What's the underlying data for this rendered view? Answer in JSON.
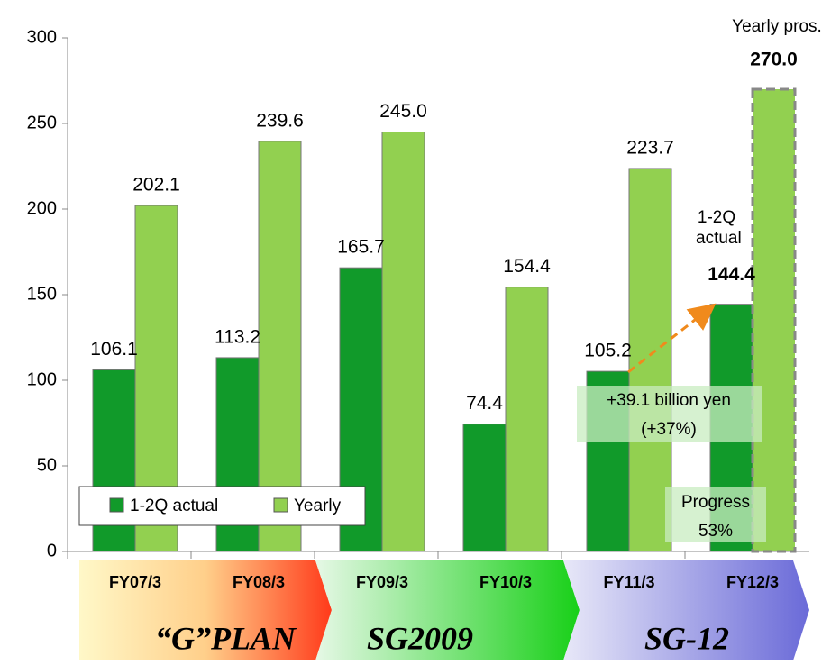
{
  "chart_data": {
    "type": "bar",
    "categories": [
      "FY07/3",
      "FY08/3",
      "FY09/3",
      "FY10/3",
      "FY11/3",
      "FY12/3"
    ],
    "series": [
      {
        "name": "1-2Q actual",
        "color": "#119a2a",
        "values": [
          106.1,
          113.2,
          165.7,
          74.4,
          105.2,
          144.4
        ],
        "value_labels": [
          "106.1",
          "113.2",
          "165.7",
          "74.4",
          "105.2",
          "144.4"
        ]
      },
      {
        "name": "Yearly",
        "color": "#92d050",
        "values": [
          202.1,
          239.6,
          245.0,
          154.4,
          223.7,
          270.0
        ],
        "value_labels": [
          "202.1",
          "239.6",
          "245.0",
          "154.4",
          "223.7",
          "270.0"
        ]
      }
    ],
    "ylim": [
      0,
      300
    ],
    "yticks": [
      0,
      50,
      100,
      150,
      200,
      250,
      300
    ],
    "grid": false,
    "legend": "bottom-left",
    "annotations": [
      "Yearly pros.",
      "1-2Q actual",
      "+39.1 billion yen",
      "(+37%)",
      "Progress",
      "53%"
    ],
    "plans": [
      "“G”PLAN",
      "SG2009",
      "SG-12"
    ]
  }
}
